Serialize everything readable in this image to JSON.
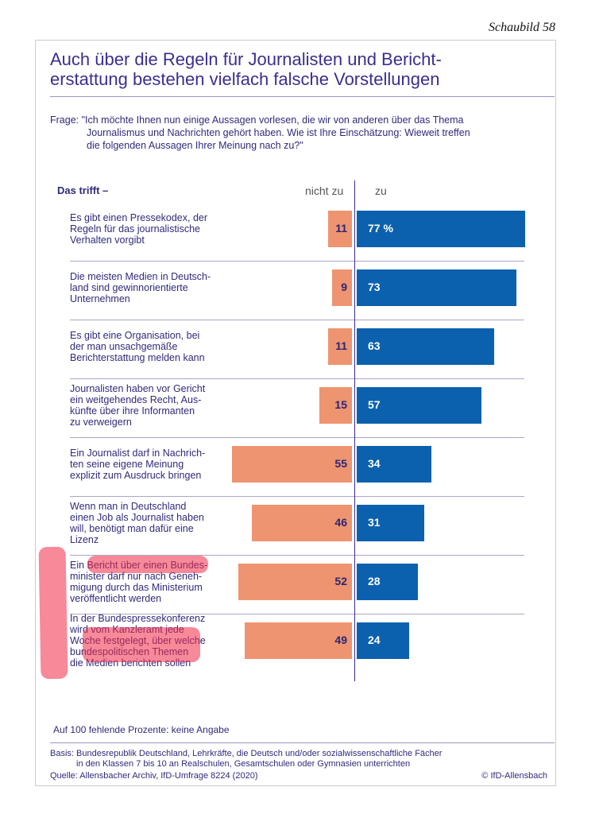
{
  "header": {
    "figure_label": "Schaubild 58",
    "title_line1": "Auch über die Regeln für Journalisten und Bericht-",
    "title_line2": "erstattung bestehen vielfach falsche Vorstellungen"
  },
  "question": {
    "line1": "Frage: \"Ich möchte Ihnen nun einige Aussagen vorlesen, die wir von anderen über das Thema",
    "line2": "Journalismus und Nachrichten gehört haben. Wie ist Ihre Einschätzung: Wieweit treffen",
    "line3": "die folgenden Aussagen Ihrer Meinung nach zu?\""
  },
  "chart_data": {
    "type": "bar",
    "orientation": "horizontal-diverging",
    "row_header": "Das trifft –",
    "series": [
      {
        "name": "nicht zu",
        "color": "#ee9470",
        "values": [
          11,
          9,
          11,
          15,
          55,
          46,
          52,
          49
        ]
      },
      {
        "name": "zu",
        "color": "#0b61ae",
        "values": [
          77,
          73,
          63,
          57,
          34,
          31,
          28,
          24
        ]
      }
    ],
    "value_labels_zu": [
      "77 %",
      "73",
      "63",
      "57",
      "34",
      "31",
      "28",
      "24"
    ],
    "categories": [
      [
        "Es gibt einen Pressekodex, der",
        "Regeln für das journalistische",
        "Verhalten vorgibt"
      ],
      [
        "Die meisten Medien in Deutsch-",
        "land sind gewinnorientierte",
        "Unternehmen"
      ],
      [
        "Es gibt eine Organisation, bei",
        "der man unsachgemäße",
        "Berichterstattung melden kann"
      ],
      [
        "Journalisten haben vor Gericht",
        "ein weitgehendes Recht, Aus-",
        "künfte über ihre Informanten",
        "zu verweigern"
      ],
      [
        "Ein Journalist darf in Nachrich-",
        "ten seine eigene Meinung",
        "explizit zum Ausdruck bringen"
      ],
      [
        "Wenn man in Deutschland",
        "einen Job als Journalist haben",
        "will, benötigt man dafür eine",
        "Lizenz"
      ],
      [
        "Ein Bericht über einen Bundes-",
        "minister darf nur nach Geneh-",
        "migung durch das Ministerium",
        "veröffentlicht werden"
      ],
      [
        "In der Bundespressekonferenz",
        "wird vom Kanzleramt jede",
        "Woche festgelegt, über welche",
        "bundespolitischen Themen",
        "die Medien berichten sollen"
      ]
    ],
    "unit": "%"
  },
  "footer": {
    "note": "Auf 100 fehlende Prozente: keine Angabe",
    "basis1": "Basis: Bundesrepublik Deutschland, Lehrkräfte, die Deutsch und/oder sozialwissenschaftliche Fächer",
    "basis2": "in den Klassen 7 bis 10 an Realschulen, Gesamtschulen oder Gymnasien unterrichten",
    "source": "Quelle: Allensbacher Archiv, IfD-Umfrage 8224 (2020)",
    "copyright": "© IfD-Allensbach"
  }
}
